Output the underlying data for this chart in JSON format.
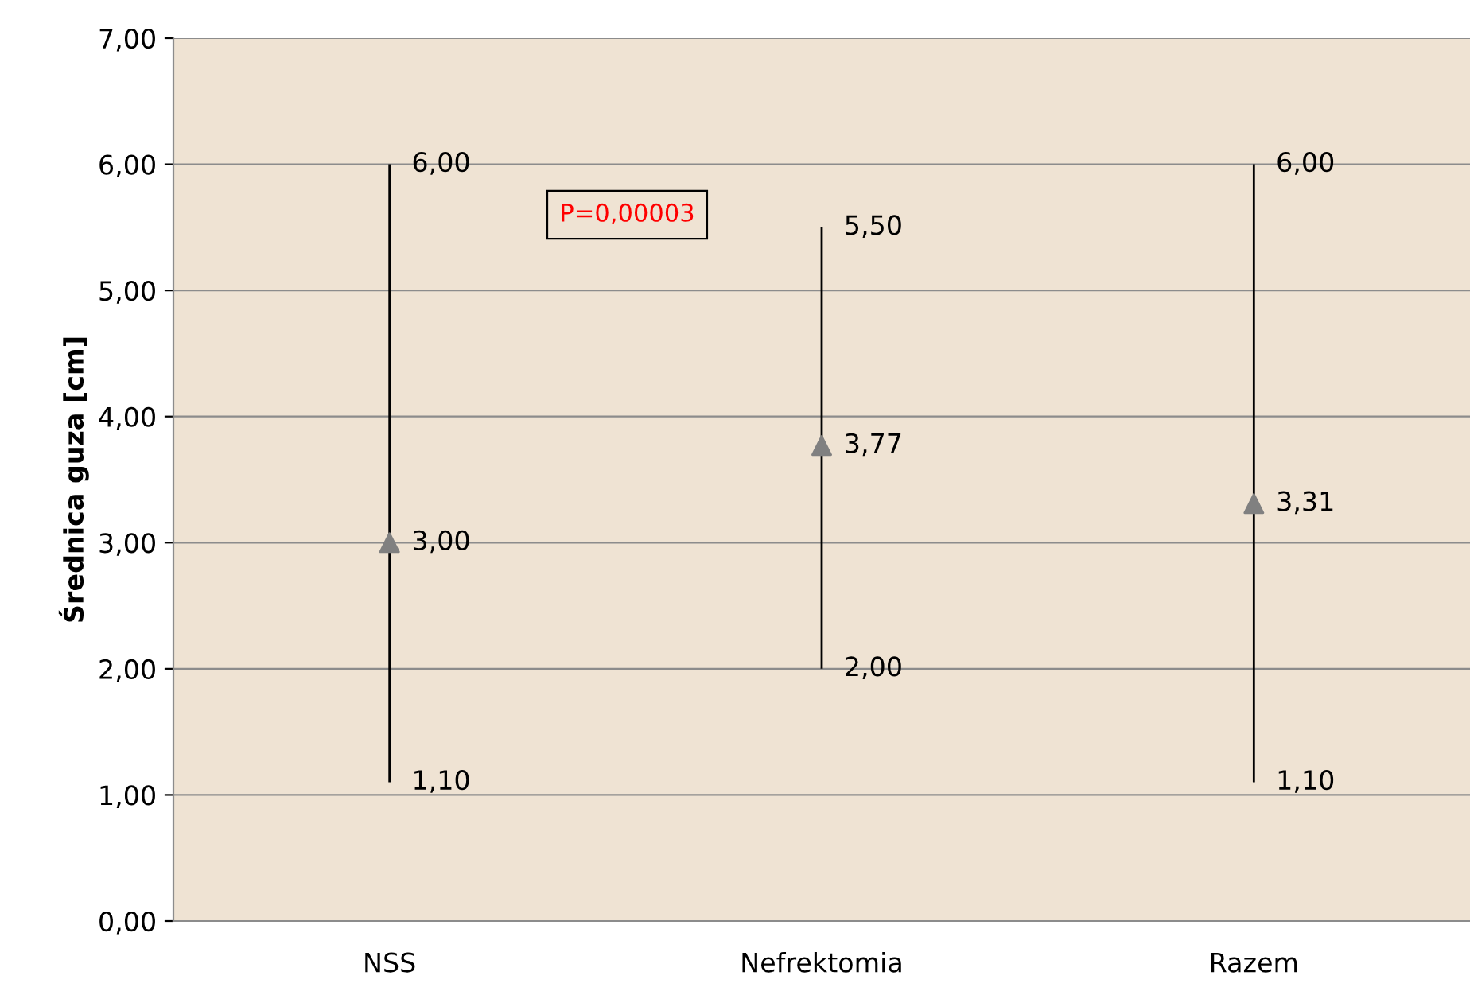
{
  "chart_data": {
    "type": "scatter",
    "ylabel": "Średnica guza [cm]",
    "categories": [
      "NSS",
      "Nefrektomia",
      "Razem"
    ],
    "values": [
      3.0,
      3.77,
      3.31
    ],
    "errors": [
      [
        1.1,
        6.0
      ],
      [
        2.0,
        5.5
      ],
      [
        1.1,
        6.0
      ]
    ],
    "value_labels": [
      "3,00",
      "3,77",
      "3,31"
    ],
    "color": "#808080",
    "marker": "triangle",
    "ylim": [
      0,
      7
    ],
    "yticks": [
      {
        "value": 0,
        "label": "0,00"
      },
      {
        "value": 1,
        "label": "1,00"
      },
      {
        "value": 2,
        "label": "2,00"
      },
      {
        "value": 3,
        "label": "3,00"
      },
      {
        "value": 4,
        "label": "4,00"
      },
      {
        "value": 5,
        "label": "5,00"
      },
      {
        "value": 6,
        "label": "6,00"
      },
      {
        "value": 7,
        "label": "7,00"
      }
    ],
    "grid": "y",
    "annotations": [
      {
        "text": "6,00",
        "x": "NSS",
        "y": 6.0
      },
      {
        "text": "1,10",
        "x": "NSS",
        "y": 1.1
      },
      {
        "text": "5,50",
        "x": "Nefrektomia",
        "y": 5.5
      },
      {
        "text": "2,00",
        "x": "Nefrektomia",
        "y": 2.0
      },
      {
        "text": "6,00",
        "x": "Razem",
        "y": 6.0
      },
      {
        "text": "1,10",
        "x": "Razem",
        "y": 1.1
      },
      "P=0,00003"
    ]
  }
}
